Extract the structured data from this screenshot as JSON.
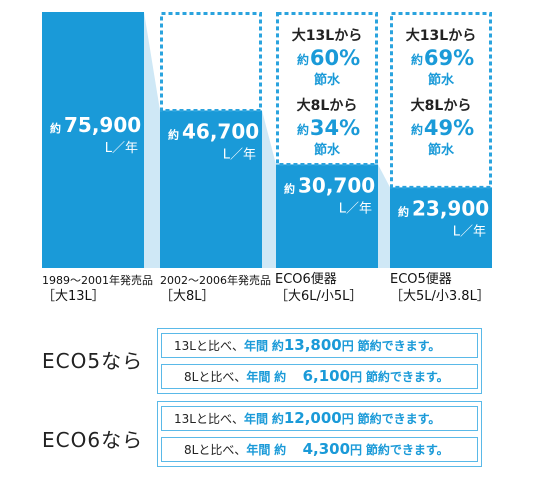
{
  "colors": {
    "bar": "#1a9ad8",
    "bar_faded": "#cfe8f6",
    "dashed": "#2aa3de",
    "accent_text": "#1a9ad8",
    "box_border": "#5ab9e8"
  },
  "chart_data": {
    "type": "bar",
    "title": "",
    "xlabel": "",
    "ylabel": "",
    "unit": "L／年",
    "value_prefix": "約",
    "ylim": [
      0,
      75900
    ],
    "grid": false,
    "legend": "none",
    "categories": [
      {
        "line1": "1989～2001年発売品",
        "line2": "［大13L］"
      },
      {
        "line1": "2002～2006年発売品",
        "line2": "［大8L］"
      },
      {
        "line1": "ECO6便器",
        "line2": "［大6L/小5L］"
      },
      {
        "line1": "ECO5便器",
        "line2": "［大5L/小3.8L］"
      }
    ],
    "values": [
      75900,
      46700,
      30700,
      23900
    ],
    "value_labels": [
      "75,900",
      "46,700",
      "30,700",
      "23,900"
    ],
    "savings": [
      null,
      null,
      [
        {
          "from": "大13Lから",
          "prefix": "約",
          "percent": "60%",
          "suffix": "節水"
        },
        {
          "from": "大8Lから",
          "prefix": "約",
          "percent": "34%",
          "suffix": "節水"
        }
      ],
      [
        {
          "from": "大13Lから",
          "prefix": "約",
          "percent": "69%",
          "suffix": "節水"
        },
        {
          "from": "大8Lから",
          "prefix": "約",
          "percent": "49%",
          "suffix": "節水"
        }
      ]
    ]
  },
  "comparison": {
    "eco5": {
      "label": "ECO5なら",
      "rows": [
        {
          "lead": "13Lと比べ、",
          "year": "年間",
          "about": "約",
          "amount": "13,800",
          "yen": "円",
          "tail": "節約できます。"
        },
        {
          "lead": "8Lと比べ、",
          "year": "年間",
          "about": "約",
          "amount": "6,100",
          "yen": "円",
          "tail": "節約できます。"
        }
      ]
    },
    "eco6": {
      "label": "ECO6なら",
      "rows": [
        {
          "lead": "13Lと比べ、",
          "year": "年間",
          "about": "約",
          "amount": "12,000",
          "yen": "円",
          "tail": "節約できます。"
        },
        {
          "lead": "8Lと比べ、",
          "year": "年間",
          "about": "約",
          "amount": "4,300",
          "yen": "円",
          "tail": "節約できます。"
        }
      ]
    }
  }
}
